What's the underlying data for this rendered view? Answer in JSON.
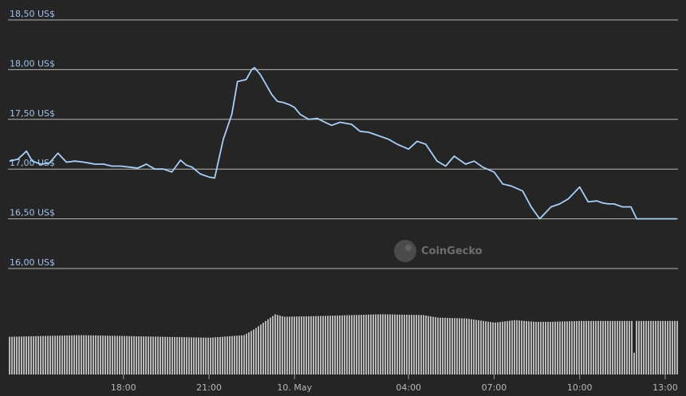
{
  "chart_data": {
    "type": "line",
    "ylabel": "",
    "xlabel": "",
    "ylim": [
      15.8,
      18.6
    ],
    "y_ticks": [
      "16,00 US$",
      "16,50 US$",
      "17,00 US$",
      "17,50 US$",
      "18,00 US$",
      "18,50 US$"
    ],
    "y_tick_values": [
      16.0,
      16.5,
      17.0,
      17.5,
      18.0,
      18.5
    ],
    "x_ticks": [
      "18:00",
      "21:00",
      "10. May",
      "04:00",
      "07:00",
      "10:00",
      "13:00"
    ],
    "x_tick_hours": [
      18,
      21,
      24,
      28,
      31,
      34,
      37
    ],
    "x_range_hours": [
      13.95,
      37.45
    ],
    "grid": true,
    "colors": {
      "line": "#a8cff7",
      "volume": "#c8c8c8",
      "grid": "#d0d0d0"
    },
    "series": [
      {
        "x": [
          14.0,
          14.3,
          14.6,
          14.8,
          15.1,
          15.4,
          15.7,
          16.0,
          16.3,
          16.6,
          16.8,
          17.0,
          17.3,
          17.6,
          17.9,
          18.2,
          18.5,
          18.8,
          19.1,
          19.4,
          19.7,
          20.0,
          20.2,
          20.4,
          20.7,
          21.0,
          21.2,
          21.5,
          21.8,
          22.0,
          22.3,
          22.5,
          22.6,
          22.8,
          23.0,
          23.2,
          23.4,
          23.6,
          23.8,
          24.0,
          24.2,
          24.5,
          24.8,
          25.0,
          25.3,
          25.6,
          26.0,
          26.3,
          26.6,
          27.0,
          27.3,
          27.6,
          28.0,
          28.3,
          28.6,
          29.0,
          29.3,
          29.6,
          30.0,
          30.3,
          30.6,
          31.0,
          31.3,
          31.6,
          32.0,
          32.3,
          32.6,
          33.0,
          33.3,
          33.6,
          34.0,
          34.3,
          34.6,
          34.8,
          35.0,
          35.2,
          35.5,
          35.8,
          36.0,
          36.2,
          36.4,
          36.8,
          37.1,
          37.4
        ],
        "values": [
          17.08,
          17.1,
          17.18,
          17.08,
          17.05,
          17.06,
          17.16,
          17.07,
          17.08,
          17.07,
          17.06,
          17.05,
          17.05,
          17.03,
          17.03,
          17.02,
          17.01,
          17.05,
          17.0,
          17.0,
          16.97,
          17.09,
          17.04,
          17.02,
          16.95,
          16.92,
          16.91,
          17.3,
          17.55,
          17.88,
          17.9,
          18.0,
          18.02,
          17.95,
          17.85,
          17.75,
          17.68,
          17.67,
          17.65,
          17.62,
          17.55,
          17.5,
          17.51,
          17.48,
          17.44,
          17.47,
          17.45,
          17.38,
          17.37,
          17.33,
          17.3,
          17.25,
          17.2,
          17.28,
          17.25,
          17.08,
          17.03,
          17.13,
          17.05,
          17.08,
          17.02,
          16.97,
          16.85,
          16.83,
          16.78,
          16.62,
          16.5,
          16.62,
          16.65,
          16.7,
          16.82,
          16.67,
          16.68,
          16.66,
          16.65,
          16.65,
          16.62,
          16.62,
          16.5,
          16.5,
          16.5,
          16.5,
          16.5,
          16.5
        ]
      }
    ],
    "volume_segments": [
      [
        13.95,
        0.45
      ],
      [
        15.1,
        0.46
      ],
      [
        16.5,
        0.47
      ],
      [
        18.0,
        0.46
      ],
      [
        19.5,
        0.45
      ],
      [
        21.0,
        0.44
      ],
      [
        22.2,
        0.47
      ],
      [
        22.6,
        0.55
      ],
      [
        23.0,
        0.65
      ],
      [
        23.3,
        0.72
      ],
      [
        23.6,
        0.69
      ],
      [
        25.0,
        0.7
      ],
      [
        26.0,
        0.71
      ],
      [
        27.0,
        0.72
      ],
      [
        28.5,
        0.71
      ],
      [
        29.0,
        0.68
      ],
      [
        30.0,
        0.67
      ],
      [
        31.0,
        0.62
      ],
      [
        31.7,
        0.65
      ],
      [
        32.4,
        0.63
      ],
      [
        33.0,
        0.63
      ],
      [
        34.0,
        0.64
      ],
      [
        35.3,
        0.64
      ],
      [
        35.8,
        0.26
      ],
      [
        35.9,
        0.64
      ],
      [
        37.45,
        0.64
      ]
    ],
    "watermark": "CoinGecko"
  }
}
